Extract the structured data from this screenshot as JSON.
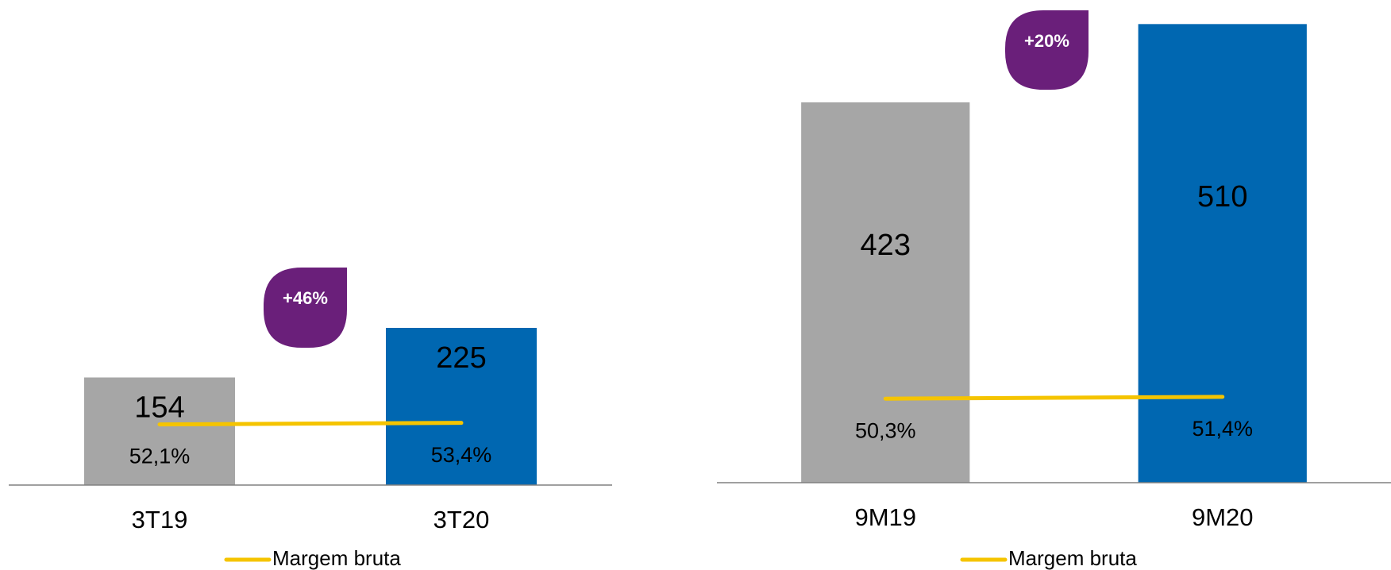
{
  "chart_data": [
    {
      "type": "bar",
      "categories": [
        "3T19",
        "3T20"
      ],
      "series": [
        {
          "type": "bar",
          "colors": [
            "#a6a6a6",
            "#0067b1"
          ],
          "values": [
            154,
            225
          ]
        },
        {
          "type": "line",
          "name": "Margem bruta",
          "color": "#f5c400",
          "axis": "y2",
          "values": [
            52.1,
            53.4
          ],
          "value_labels": [
            "52,1%",
            "53,4%"
          ]
        }
      ],
      "ylim": [
        0,
        400
      ],
      "y2lim": [
        0,
        240
      ],
      "annotation": "+46%",
      "annotation_color": "#6a1f7a"
    },
    {
      "type": "bar",
      "categories": [
        "9M19",
        "9M20"
      ],
      "series": [
        {
          "type": "bar",
          "colors": [
            "#a6a6a6",
            "#0067b1"
          ],
          "values": [
            423,
            510
          ]
        },
        {
          "type": "line",
          "name": "Margem bruta",
          "color": "#f5c400",
          "axis": "y2",
          "values": [
            50.3,
            51.4
          ],
          "value_labels": [
            "50,3%",
            "51,4%"
          ]
        }
      ],
      "ylim": [
        0,
        520
      ],
      "y2lim": [
        0,
        280
      ],
      "annotation": "+20%",
      "annotation_color": "#6a1f7a"
    }
  ]
}
